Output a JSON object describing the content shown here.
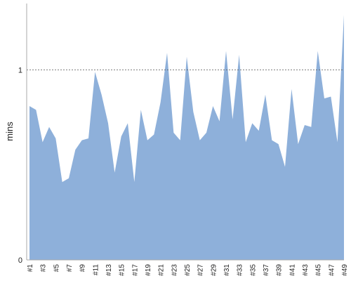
{
  "chart_data": {
    "type": "area",
    "y_label": "mins",
    "categories": [
      "#1",
      null,
      "#3",
      null,
      "#5",
      null,
      "#7",
      null,
      "#9",
      null,
      "#11",
      null,
      "#13",
      null,
      "#15",
      null,
      "#17",
      null,
      "#19",
      null,
      "#21",
      null,
      "#23",
      null,
      "#25",
      null,
      "#27",
      null,
      "#29",
      null,
      "#31",
      null,
      "#33",
      null,
      "#35",
      null,
      "#37",
      null,
      "#39",
      null,
      "#41",
      null,
      "#43",
      null,
      "#45",
      null,
      "#47",
      null,
      "#49"
    ],
    "values": [
      0.81,
      0.79,
      0.62,
      0.7,
      0.64,
      0.41,
      0.43,
      0.58,
      0.63,
      0.64,
      0.99,
      0.87,
      0.72,
      0.46,
      0.65,
      0.72,
      0.41,
      0.79,
      0.63,
      0.66,
      0.83,
      1.09,
      0.67,
      0.63,
      1.07,
      0.78,
      0.63,
      0.67,
      0.81,
      0.73,
      1.1,
      0.74,
      1.08,
      0.62,
      0.72,
      0.68,
      0.87,
      0.63,
      0.61,
      0.49,
      0.9,
      0.61,
      0.71,
      0.7,
      1.1,
      0.85,
      0.86,
      0.62,
      1.29
    ],
    "color": "#8eb0da",
    "ylim": [
      0,
      1.35
    ],
    "yticks": [
      0,
      1
    ],
    "grid": true
  }
}
